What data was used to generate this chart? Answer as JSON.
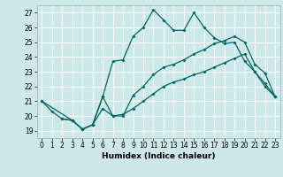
{
  "xlabel": "Humidex (Indice chaleur)",
  "xlim": [
    -0.5,
    23.5
  ],
  "ylim": [
    18.5,
    27.5
  ],
  "yticks": [
    19,
    20,
    21,
    22,
    23,
    24,
    25,
    26,
    27
  ],
  "xticks": [
    0,
    1,
    2,
    3,
    4,
    5,
    6,
    7,
    8,
    9,
    10,
    11,
    12,
    13,
    14,
    15,
    16,
    17,
    18,
    19,
    20,
    21,
    22,
    23
  ],
  "bg_color": "#cce8e8",
  "line_color": "#006666",
  "grid_color": "#ffffff",
  "lines": [
    {
      "x": [
        0,
        1,
        2,
        3,
        4,
        5,
        6,
        7,
        8,
        9,
        10,
        11,
        12,
        13,
        14,
        15,
        16,
        17,
        18,
        19,
        20,
        21,
        22,
        23
      ],
      "y": [
        21.0,
        20.3,
        19.8,
        19.7,
        19.1,
        19.4,
        21.3,
        23.7,
        23.8,
        25.4,
        26.0,
        27.2,
        26.5,
        25.8,
        25.8,
        27.0,
        26.0,
        25.3,
        24.9,
        25.0,
        23.7,
        23.0,
        22.2,
        21.3
      ]
    },
    {
      "x": [
        0,
        3,
        4,
        5,
        6,
        7,
        8,
        9,
        10,
        11,
        12,
        13,
        14,
        15,
        16,
        17,
        18,
        19,
        20,
        21,
        22,
        23
      ],
      "y": [
        21.0,
        19.7,
        19.1,
        19.4,
        21.3,
        20.0,
        20.0,
        21.4,
        22.0,
        22.8,
        23.3,
        23.5,
        23.8,
        24.2,
        24.5,
        24.9,
        25.1,
        25.4,
        25.0,
        23.5,
        22.9,
        21.3
      ]
    },
    {
      "x": [
        2,
        3,
        4,
        5,
        6,
        7,
        8,
        9,
        10,
        11,
        12,
        13,
        14,
        15,
        16,
        17,
        18,
        19,
        20,
        21,
        22,
        23
      ],
      "y": [
        19.8,
        19.7,
        19.1,
        19.4,
        20.5,
        20.0,
        20.1,
        20.5,
        21.0,
        21.5,
        22.0,
        22.3,
        22.5,
        22.8,
        23.0,
        23.3,
        23.6,
        23.9,
        24.2,
        23.0,
        22.0,
        21.3
      ]
    }
  ],
  "xlabel_fontsize": 6.5,
  "tick_fontsize": 5.5
}
